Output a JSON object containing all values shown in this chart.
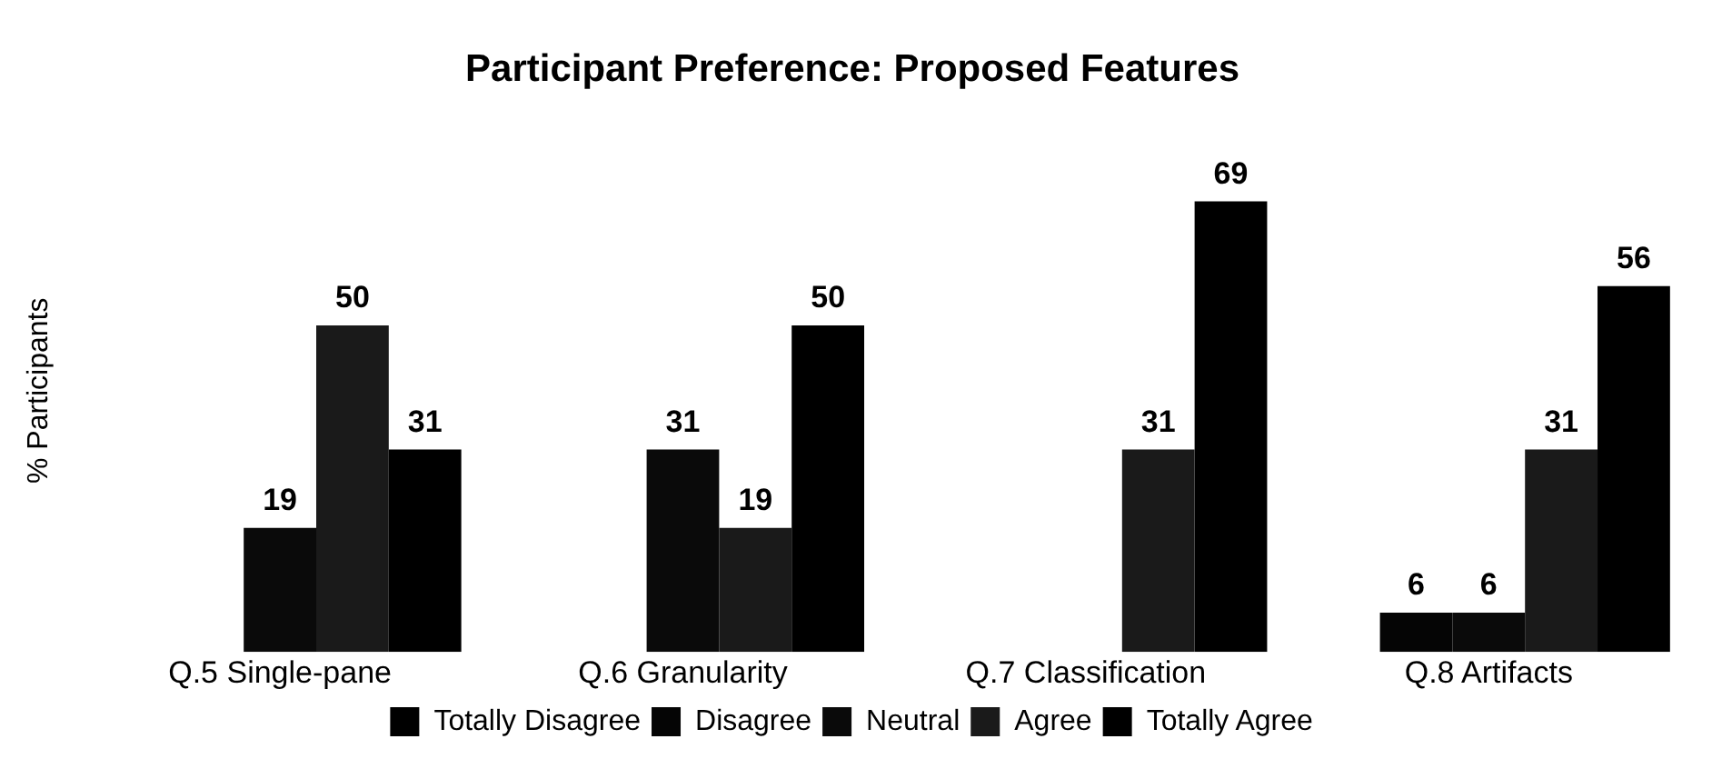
{
  "chart_data": {
    "type": "bar",
    "title": "Participant Preference: Proposed Features",
    "ylabel": "% Participants",
    "categories": [
      "Q.5 Single-pane",
      "Q.6 Granularity",
      "Q.7 Classification",
      "Q.8 Artifacts"
    ],
    "series": [
      {
        "name": "Totally Disagree",
        "color": "#000000",
        "values": [
          null,
          null,
          null,
          null
        ]
      },
      {
        "name": "Disagree",
        "color": "#050505",
        "values": [
          null,
          null,
          null,
          6
        ]
      },
      {
        "name": "Neutral",
        "color": "#0a0a0a",
        "values": [
          19,
          31,
          null,
          6
        ]
      },
      {
        "name": "Agree",
        "color": "#1a1a1a",
        "values": [
          50,
          19,
          31,
          31
        ]
      },
      {
        "name": "Totally Agree",
        "color": "#000000",
        "values": [
          31,
          50,
          69,
          56
        ]
      }
    ],
    "data_labels": true,
    "grid": false,
    "legend": "bottom"
  }
}
